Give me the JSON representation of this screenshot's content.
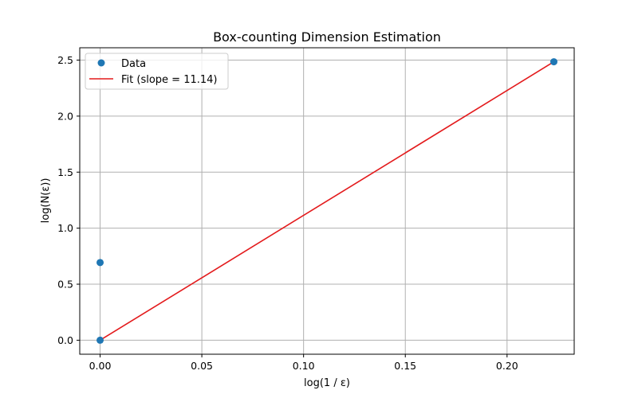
{
  "chart_data": {
    "type": "scatter",
    "title": "Box-counting Dimension Estimation",
    "xlabel": "log(1 / ε)",
    "ylabel": "log(N(ε))",
    "xlim": [
      -0.01,
      0.233
    ],
    "ylim": [
      -0.125,
      2.61
    ],
    "xticks": [
      0.0,
      0.05,
      0.1,
      0.15,
      0.2
    ],
    "xtick_labels": [
      "0.00",
      "0.05",
      "0.10",
      "0.15",
      "0.20"
    ],
    "yticks": [
      0.0,
      0.5,
      1.0,
      1.5,
      2.0,
      2.5
    ],
    "ytick_labels": [
      "0.0",
      "0.5",
      "1.0",
      "1.5",
      "2.0",
      "2.5"
    ],
    "grid": true,
    "legend_position": "top-left",
    "series": [
      {
        "name": "Data",
        "kind": "scatter",
        "color": "#1f77b4",
        "points": [
          {
            "x": 0.0,
            "y": 0.0
          },
          {
            "x": 0.0,
            "y": 0.693
          },
          {
            "x": 0.223,
            "y": 2.485
          }
        ]
      },
      {
        "name": "Fit (slope = 11.14)",
        "kind": "line",
        "color": "#e31a1c",
        "points": [
          {
            "x": 0.0,
            "y": 0.0
          },
          {
            "x": 0.223,
            "y": 2.485
          }
        ]
      }
    ]
  }
}
